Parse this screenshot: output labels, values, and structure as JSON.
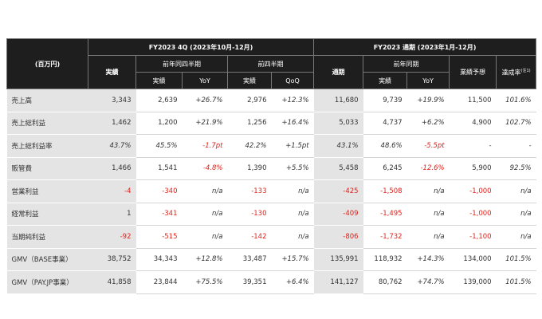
{
  "header": {
    "unit": "(百万円)",
    "period_4q": "FY2023 4Q (2023年10月-12月)",
    "period_fy": "FY2023 通期 (2023年1月-12月)",
    "actual": "実績",
    "prior_year_q": "前年同四半期",
    "prior_q": "前四半期",
    "full_year": "通期",
    "prior_year": "前年同期",
    "forecast": "業績予想",
    "achievement": "達成率",
    "note": "(注1)",
    "sub": [
      "実績",
      "YoY",
      "実績",
      "QoQ",
      "実績",
      "YoY"
    ]
  },
  "rows": [
    {
      "label": "売上高",
      "cells": [
        "3,343",
        "2,639",
        "+26.7%",
        "2,976",
        "+12.3%",
        "11,680",
        "9,739",
        "+19.9%",
        "11,500",
        "101.6%"
      ]
    },
    {
      "label": "売上総利益",
      "cells": [
        "1,462",
        "1,200",
        "+21.9%",
        "1,256",
        "+16.4%",
        "5,033",
        "4,737",
        "+6.2%",
        "4,900",
        "102.7%"
      ]
    },
    {
      "label": "売上総利益率",
      "cells": [
        "43.7%",
        "45.5%",
        "-1.7pt",
        "42.2%",
        "+1.5pt",
        "43.1%",
        "48.6%",
        "-5.5pt",
        "-",
        "-"
      ]
    },
    {
      "label": "販管費",
      "cells": [
        "1,466",
        "1,541",
        "-4.8%",
        "1,390",
        "+5.5%",
        "5,458",
        "6,245",
        "-12.6%",
        "5,900",
        "92.5%"
      ]
    },
    {
      "label": "営業利益",
      "cells": [
        "-4",
        "-340",
        "n/a",
        "-133",
        "n/a",
        "-425",
        "-1,508",
        "n/a",
        "-1,000",
        "n/a"
      ]
    },
    {
      "label": "経常利益",
      "cells": [
        "1",
        "-341",
        "n/a",
        "-130",
        "n/a",
        "-409",
        "-1,495",
        "n/a",
        "-1,000",
        "n/a"
      ]
    },
    {
      "label": "当期純利益",
      "cells": [
        "-92",
        "-515",
        "n/a",
        "-142",
        "n/a",
        "-806",
        "-1,732",
        "n/a",
        "-1,100",
        "n/a"
      ]
    },
    {
      "label": "GMV（BASE事業）",
      "cells": [
        "38,752",
        "34,343",
        "+12.8%",
        "33,487",
        "+15.7%",
        "135,991",
        "118,932",
        "+14.3%",
        "134,000",
        "101.5%"
      ]
    },
    {
      "label": "GMV（PAY.JP事業）",
      "cells": [
        "41,858",
        "23,844",
        "+75.5%",
        "39,351",
        "+6.4%",
        "141,127",
        "80,762",
        "+74.7%",
        "139,000",
        "101.5%"
      ]
    }
  ]
}
